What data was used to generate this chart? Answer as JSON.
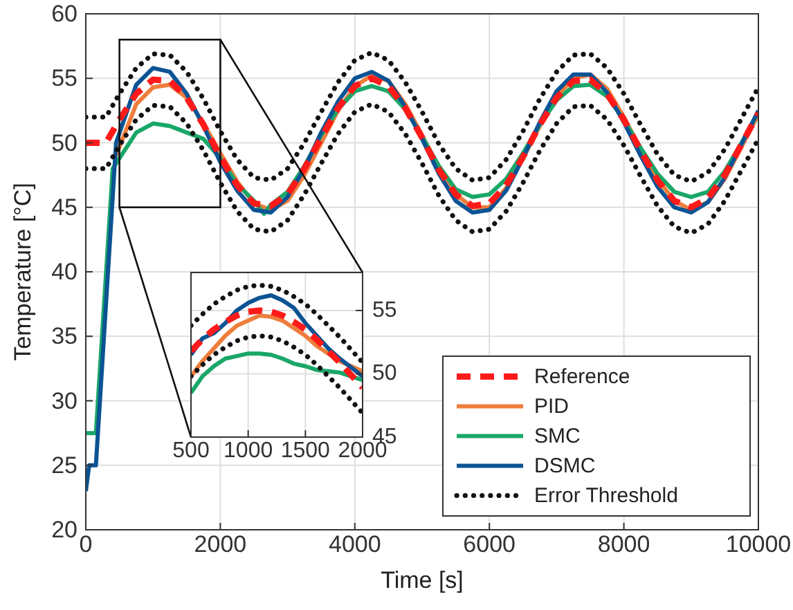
{
  "chart_data": [
    {
      "type": "line",
      "xlabel": "Time [s]",
      "ylabel": "Temperature [°C]",
      "xlim": [
        0,
        10000
      ],
      "xticks": [
        0,
        2000,
        4000,
        6000,
        8000,
        10000
      ],
      "ylim": [
        20,
        60
      ],
      "yticks": [
        20,
        25,
        30,
        35,
        40,
        45,
        50,
        55,
        60
      ],
      "grid": true,
      "legend": "bottom right",
      "series": [
        {
          "name": "Reference",
          "color": "#ff1a1a",
          "line_style": "dashed",
          "x": [
            0,
            300,
            500,
            750,
            1000,
            1250,
            1500,
            1750,
            2000,
            2250,
            2500,
            2750,
            3000,
            3250,
            3500,
            3750,
            4000,
            4250,
            4500,
            4750,
            5000,
            5250,
            5500,
            5750,
            6000,
            6250,
            6500,
            6750,
            7000,
            7250,
            7500,
            7750,
            8000,
            8250,
            8500,
            8750,
            9000,
            9250,
            9500,
            9750,
            10000
          ],
          "values": [
            50,
            50,
            51.8,
            53.8,
            54.9,
            54.8,
            53.5,
            51.4,
            48.9,
            46.7,
            45.3,
            45.1,
            46,
            48,
            50.4,
            52.7,
            54.4,
            55,
            54.4,
            52.7,
            50.4,
            47.9,
            46,
            45.1,
            45.3,
            46.7,
            48.9,
            51.4,
            53.5,
            54.8,
            54.9,
            53.8,
            51.8,
            49.4,
            47.1,
            45.5,
            45,
            45.7,
            47.5,
            49.9,
            52.3
          ]
        },
        {
          "name": "PID",
          "color": "#ee7d3c",
          "x": [
            450,
            750,
            1000,
            1250,
            1500,
            1750,
            2000,
            2250,
            2500,
            2750,
            3000,
            3250,
            3500,
            3750,
            4000,
            4250,
            4500,
            4750,
            5000,
            5250,
            5500,
            5750,
            6000,
            6250,
            6500,
            6750,
            7000,
            7250,
            7500,
            7750,
            8000,
            8250,
            8500,
            8750,
            9000,
            9250,
            9500,
            9750,
            10000
          ],
          "values": [
            49,
            53,
            54.3,
            54.5,
            53.5,
            51.5,
            49.2,
            47,
            45.3,
            44.8,
            45.5,
            47.5,
            50,
            52.5,
            54.4,
            55.2,
            54.8,
            53,
            50.6,
            48,
            46,
            45,
            45,
            46.5,
            48.8,
            51.3,
            53.6,
            55,
            55.3,
            54.2,
            52,
            49.5,
            47.2,
            45.5,
            44.8,
            45.4,
            47.2,
            49.7,
            52.2
          ]
        },
        {
          "name": "SMC",
          "color": "#1aa768",
          "x": [
            0,
            150,
            400,
            750,
            1000,
            1250,
            1500,
            1750,
            2000,
            2250,
            2500,
            2650,
            2750,
            3000,
            3250,
            3500,
            3750,
            4000,
            4250,
            4500,
            4750,
            5000,
            5250,
            5500,
            5750,
            6000,
            6250,
            6500,
            6750,
            7000,
            7250,
            7500,
            7750,
            8000,
            8250,
            8500,
            8750,
            9000,
            9250,
            9500,
            9750,
            10000
          ],
          "values": [
            27.5,
            27.5,
            48,
            50.8,
            51.5,
            51.3,
            50.8,
            50.3,
            48.8,
            46.8,
            45.5,
            44.5,
            45.2,
            46.2,
            48.2,
            50.6,
            52.6,
            54,
            54.4,
            54,
            52.6,
            50.5,
            48.2,
            46.4,
            45.8,
            46,
            47.2,
            49.2,
            51.4,
            53.3,
            54.4,
            54.5,
            53.6,
            51.8,
            49.6,
            47.6,
            46.2,
            45.8,
            46.2,
            47.8,
            50,
            52.4
          ]
        },
        {
          "name": "DSMC",
          "color": "#0b5394",
          "x": [
            0,
            50,
            150,
            450,
            750,
            1000,
            1250,
            1500,
            1750,
            2000,
            2250,
            2500,
            2750,
            3000,
            3250,
            3500,
            3750,
            4000,
            4250,
            4500,
            4750,
            5000,
            5250,
            5500,
            5750,
            6000,
            6250,
            6500,
            6750,
            7000,
            7250,
            7500,
            7750,
            8000,
            8250,
            8500,
            8750,
            9000,
            9250,
            9500,
            9750,
            10000
          ],
          "values": [
            23,
            25,
            25,
            50,
            54.5,
            55.8,
            55.5,
            53.8,
            51.3,
            48.5,
            46.3,
            44.8,
            44.6,
            45.8,
            48,
            50.8,
            53.2,
            55,
            55.5,
            54.8,
            52.8,
            50.3,
            47.6,
            45.5,
            44.6,
            44.8,
            46.3,
            48.8,
            51.6,
            54,
            55.3,
            55.3,
            53.9,
            51.6,
            49,
            46.6,
            45,
            44.6,
            45.4,
            47.3,
            49.9,
            52.5
          ]
        },
        {
          "name": "Error Threshold",
          "color": "#111111",
          "line_style": "dotted",
          "x": [
            0,
            300,
            500,
            750,
            1000,
            1250,
            1500,
            1750,
            2000,
            2250,
            2500,
            2750,
            3000,
            3250,
            3500,
            3750,
            4000,
            4250,
            4500,
            4750,
            5000,
            5250,
            5500,
            5750,
            6000,
            6250,
            6500,
            6750,
            7000,
            7250,
            7500,
            7750,
            8000,
            8250,
            8500,
            8750,
            9000,
            9250,
            9500,
            9750,
            10000
          ],
          "values": [
            52,
            52,
            53.8,
            55.8,
            56.9,
            56.8,
            55.5,
            53.4,
            50.9,
            48.7,
            47.3,
            47.1,
            48,
            50,
            52.4,
            54.7,
            56.4,
            57,
            56.4,
            54.7,
            52.4,
            49.9,
            48,
            47.1,
            47.3,
            48.7,
            50.9,
            53.4,
            55.5,
            56.8,
            56.9,
            55.8,
            53.8,
            51.4,
            49.1,
            47.5,
            47,
            47.7,
            49.5,
            51.9,
            54.3
          ]
        },
        {
          "color": "#111111",
          "line_style": "dotted",
          "x": [
            0,
            300,
            500,
            750,
            1000,
            1250,
            1500,
            1750,
            2000,
            2250,
            2500,
            2750,
            3000,
            3250,
            3500,
            3750,
            4000,
            4250,
            4500,
            4750,
            5000,
            5250,
            5500,
            5750,
            6000,
            6250,
            6500,
            6750,
            7000,
            7250,
            7500,
            7750,
            8000,
            8250,
            8500,
            8750,
            9000,
            9250,
            9500,
            9750,
            10000
          ],
          "values": [
            48,
            48,
            49.8,
            51.8,
            52.9,
            52.8,
            51.5,
            49.4,
            46.9,
            44.7,
            43.3,
            43.1,
            44,
            46,
            48.4,
            50.7,
            52.4,
            53,
            52.4,
            50.7,
            48.4,
            45.9,
            44,
            43.1,
            43.3,
            44.7,
            46.9,
            49.4,
            51.5,
            52.8,
            52.9,
            51.8,
            49.8,
            47.4,
            45.1,
            43.5,
            43,
            43.7,
            45.5,
            47.9,
            50.3
          ]
        }
      ]
    },
    {
      "type": "line",
      "xlim": [
        500,
        2000
      ],
      "xticks": [
        500,
        1000,
        1500,
        2000
      ],
      "ylim": [
        45,
        58
      ],
      "yticks": [
        45,
        50,
        55
      ],
      "grid": true,
      "x": [
        500,
        600,
        700,
        800,
        900,
        1000,
        1100,
        1200,
        1300,
        1400,
        1500,
        1600,
        1700,
        1800,
        1900,
        2000
      ],
      "series": [
        {
          "color": "#ff1a1a",
          "line_style": "dashed",
          "values": [
            51.8,
            52.7,
            53.5,
            54.1,
            54.6,
            54.9,
            55,
            54.9,
            54.6,
            54.1,
            53.5,
            52.7,
            51.8,
            50.9,
            49.9,
            48.9
          ]
        },
        {
          "color": "#ee7d3c",
          "values": [
            49.8,
            51,
            52,
            53,
            53.8,
            54.2,
            54.6,
            54.5,
            54.2,
            53.6,
            53,
            52.2,
            51.6,
            51,
            50.6,
            50.2
          ]
        },
        {
          "color": "#1aa768",
          "values": [
            48.5,
            49.8,
            50.6,
            51.2,
            51.4,
            51.6,
            51.6,
            51.5,
            51.2,
            50.8,
            50.6,
            50.3,
            50.2,
            50.1,
            49.8,
            49.5
          ]
        },
        {
          "color": "#0b5394",
          "values": [
            51.5,
            52.8,
            53.2,
            54,
            55,
            55.6,
            56,
            56.2,
            55.8,
            55.2,
            54,
            53,
            52,
            51.2,
            50.5,
            49.8
          ]
        },
        {
          "color": "#111111",
          "line_style": "dotted",
          "values": [
            53.8,
            54.7,
            55.5,
            56.1,
            56.6,
            56.9,
            57,
            56.9,
            56.6,
            56.1,
            55.5,
            54.7,
            53.8,
            52.9,
            51.9,
            50.9
          ]
        },
        {
          "color": "#111111",
          "line_style": "dotted",
          "values": [
            49.8,
            50.7,
            51.5,
            52.1,
            52.6,
            52.9,
            53,
            52.9,
            52.6,
            52.1,
            51.5,
            50.7,
            49.8,
            48.9,
            47.9,
            46.9
          ]
        }
      ]
    }
  ]
}
